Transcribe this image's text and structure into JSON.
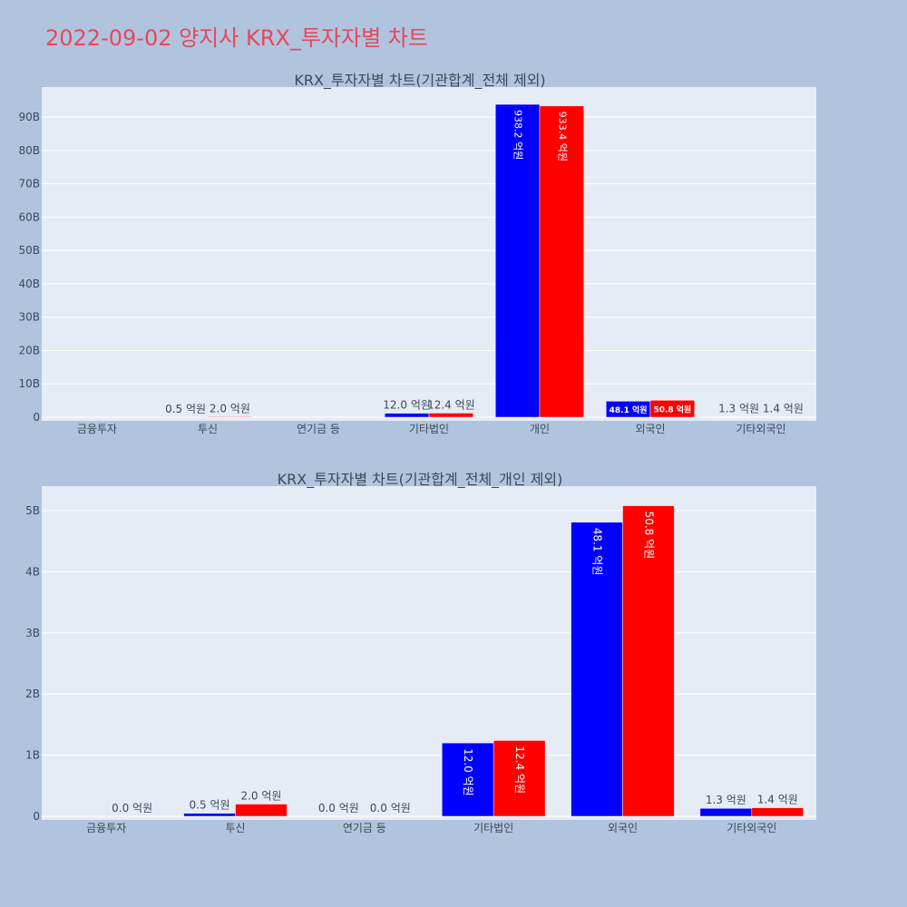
{
  "page": {
    "title": "2022-09-02 양지사 KRX_투자자별 차트"
  },
  "colors": {
    "background": "#b0c4de",
    "plot_bg": "#e5ecf6",
    "series_a": "#0000ff",
    "series_b": "#ff0000",
    "title": "#e8475e"
  },
  "chart_data": [
    {
      "type": "bar",
      "title": "KRX_투자자별 차트(기관합계_전체 제외)",
      "categories": [
        "금융투자",
        "투신",
        "연기금 등",
        "기타법인",
        "개인",
        "외국인",
        "기타외국인"
      ],
      "ylim": [
        0,
        99
      ],
      "yticks": [
        0,
        10,
        20,
        30,
        40,
        50,
        60,
        70,
        80,
        90
      ],
      "ytick_labels": [
        "0",
        "10B",
        "20B",
        "30B",
        "40B",
        "50B",
        "60B",
        "70B",
        "80B",
        "90B"
      ],
      "grid": true,
      "series": [
        {
          "color": "#0000ff",
          "values": [
            0,
            0.05,
            0,
            1.2,
            93.82,
            4.81,
            0.13
          ],
          "labels": [
            "",
            "0.5 억원",
            "",
            "12.0 억원",
            "938.2 억원",
            "48.1 억원",
            "1.3 억원"
          ]
        },
        {
          "color": "#ff0000",
          "values": [
            0,
            0.2,
            0,
            1.24,
            93.34,
            5.08,
            0.14
          ],
          "labels": [
            "",
            "2.0 억원",
            "",
            "12.4 억원",
            "933.4 억원",
            "50.8 억원",
            "1.4 억원"
          ]
        }
      ]
    },
    {
      "type": "bar",
      "title": "KRX_투자자별 차트(기관합계_전체_개인 제외)",
      "categories": [
        "금융투자",
        "투신",
        "연기금 등",
        "기타법인",
        "외국인",
        "기타외국인"
      ],
      "ylim": [
        0,
        5.4
      ],
      "yticks": [
        0,
        1,
        2,
        3,
        4,
        5
      ],
      "ytick_labels": [
        "0",
        "1B",
        "2B",
        "3B",
        "4B",
        "5B"
      ],
      "grid": true,
      "series": [
        {
          "color": "#0000ff",
          "values": [
            0,
            0.05,
            0,
            1.2,
            4.81,
            0.13
          ],
          "labels": [
            "",
            "0.5 억원",
            "0.0 억원",
            "12.0 억원",
            "48.1 억원",
            "1.3 억원"
          ]
        },
        {
          "color": "#ff0000",
          "values": [
            0,
            0.2,
            0,
            1.24,
            5.08,
            0.14
          ],
          "labels": [
            "0.0 억원",
            "2.0 억원",
            "0.0 억원",
            "12.4 억원",
            "50.8 억원",
            "1.4 억원"
          ]
        }
      ]
    }
  ]
}
